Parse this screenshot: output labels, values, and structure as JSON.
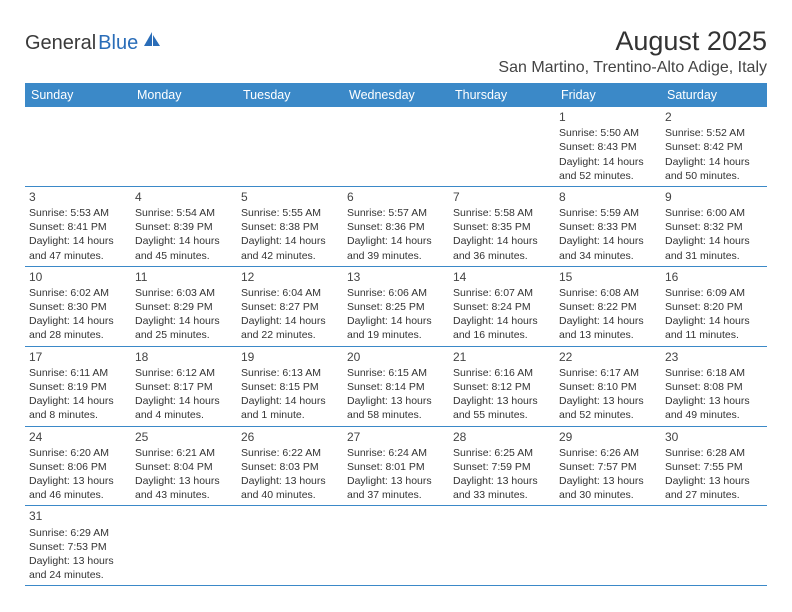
{
  "logo": {
    "part1": "General",
    "part2": "Blue"
  },
  "title": "August 2025",
  "location": "San Martino, Trentino-Alto Adige, Italy",
  "colors": {
    "header_bg": "#3b89c8",
    "header_text": "#ffffff",
    "border": "#3b89c8",
    "logo_blue": "#2a6db8",
    "text": "#333333"
  },
  "day_headers": [
    "Sunday",
    "Monday",
    "Tuesday",
    "Wednesday",
    "Thursday",
    "Friday",
    "Saturday"
  ],
  "weeks": [
    [
      null,
      null,
      null,
      null,
      null,
      {
        "n": "1",
        "sunrise": "Sunrise: 5:50 AM",
        "sunset": "Sunset: 8:43 PM",
        "daylight1": "Daylight: 14 hours",
        "daylight2": "and 52 minutes."
      },
      {
        "n": "2",
        "sunrise": "Sunrise: 5:52 AM",
        "sunset": "Sunset: 8:42 PM",
        "daylight1": "Daylight: 14 hours",
        "daylight2": "and 50 minutes."
      }
    ],
    [
      {
        "n": "3",
        "sunrise": "Sunrise: 5:53 AM",
        "sunset": "Sunset: 8:41 PM",
        "daylight1": "Daylight: 14 hours",
        "daylight2": "and 47 minutes."
      },
      {
        "n": "4",
        "sunrise": "Sunrise: 5:54 AM",
        "sunset": "Sunset: 8:39 PM",
        "daylight1": "Daylight: 14 hours",
        "daylight2": "and 45 minutes."
      },
      {
        "n": "5",
        "sunrise": "Sunrise: 5:55 AM",
        "sunset": "Sunset: 8:38 PM",
        "daylight1": "Daylight: 14 hours",
        "daylight2": "and 42 minutes."
      },
      {
        "n": "6",
        "sunrise": "Sunrise: 5:57 AM",
        "sunset": "Sunset: 8:36 PM",
        "daylight1": "Daylight: 14 hours",
        "daylight2": "and 39 minutes."
      },
      {
        "n": "7",
        "sunrise": "Sunrise: 5:58 AM",
        "sunset": "Sunset: 8:35 PM",
        "daylight1": "Daylight: 14 hours",
        "daylight2": "and 36 minutes."
      },
      {
        "n": "8",
        "sunrise": "Sunrise: 5:59 AM",
        "sunset": "Sunset: 8:33 PM",
        "daylight1": "Daylight: 14 hours",
        "daylight2": "and 34 minutes."
      },
      {
        "n": "9",
        "sunrise": "Sunrise: 6:00 AM",
        "sunset": "Sunset: 8:32 PM",
        "daylight1": "Daylight: 14 hours",
        "daylight2": "and 31 minutes."
      }
    ],
    [
      {
        "n": "10",
        "sunrise": "Sunrise: 6:02 AM",
        "sunset": "Sunset: 8:30 PM",
        "daylight1": "Daylight: 14 hours",
        "daylight2": "and 28 minutes."
      },
      {
        "n": "11",
        "sunrise": "Sunrise: 6:03 AM",
        "sunset": "Sunset: 8:29 PM",
        "daylight1": "Daylight: 14 hours",
        "daylight2": "and 25 minutes."
      },
      {
        "n": "12",
        "sunrise": "Sunrise: 6:04 AM",
        "sunset": "Sunset: 8:27 PM",
        "daylight1": "Daylight: 14 hours",
        "daylight2": "and 22 minutes."
      },
      {
        "n": "13",
        "sunrise": "Sunrise: 6:06 AM",
        "sunset": "Sunset: 8:25 PM",
        "daylight1": "Daylight: 14 hours",
        "daylight2": "and 19 minutes."
      },
      {
        "n": "14",
        "sunrise": "Sunrise: 6:07 AM",
        "sunset": "Sunset: 8:24 PM",
        "daylight1": "Daylight: 14 hours",
        "daylight2": "and 16 minutes."
      },
      {
        "n": "15",
        "sunrise": "Sunrise: 6:08 AM",
        "sunset": "Sunset: 8:22 PM",
        "daylight1": "Daylight: 14 hours",
        "daylight2": "and 13 minutes."
      },
      {
        "n": "16",
        "sunrise": "Sunrise: 6:09 AM",
        "sunset": "Sunset: 8:20 PM",
        "daylight1": "Daylight: 14 hours",
        "daylight2": "and 11 minutes."
      }
    ],
    [
      {
        "n": "17",
        "sunrise": "Sunrise: 6:11 AM",
        "sunset": "Sunset: 8:19 PM",
        "daylight1": "Daylight: 14 hours",
        "daylight2": "and 8 minutes."
      },
      {
        "n": "18",
        "sunrise": "Sunrise: 6:12 AM",
        "sunset": "Sunset: 8:17 PM",
        "daylight1": "Daylight: 14 hours",
        "daylight2": "and 4 minutes."
      },
      {
        "n": "19",
        "sunrise": "Sunrise: 6:13 AM",
        "sunset": "Sunset: 8:15 PM",
        "daylight1": "Daylight: 14 hours",
        "daylight2": "and 1 minute."
      },
      {
        "n": "20",
        "sunrise": "Sunrise: 6:15 AM",
        "sunset": "Sunset: 8:14 PM",
        "daylight1": "Daylight: 13 hours",
        "daylight2": "and 58 minutes."
      },
      {
        "n": "21",
        "sunrise": "Sunrise: 6:16 AM",
        "sunset": "Sunset: 8:12 PM",
        "daylight1": "Daylight: 13 hours",
        "daylight2": "and 55 minutes."
      },
      {
        "n": "22",
        "sunrise": "Sunrise: 6:17 AM",
        "sunset": "Sunset: 8:10 PM",
        "daylight1": "Daylight: 13 hours",
        "daylight2": "and 52 minutes."
      },
      {
        "n": "23",
        "sunrise": "Sunrise: 6:18 AM",
        "sunset": "Sunset: 8:08 PM",
        "daylight1": "Daylight: 13 hours",
        "daylight2": "and 49 minutes."
      }
    ],
    [
      {
        "n": "24",
        "sunrise": "Sunrise: 6:20 AM",
        "sunset": "Sunset: 8:06 PM",
        "daylight1": "Daylight: 13 hours",
        "daylight2": "and 46 minutes."
      },
      {
        "n": "25",
        "sunrise": "Sunrise: 6:21 AM",
        "sunset": "Sunset: 8:04 PM",
        "daylight1": "Daylight: 13 hours",
        "daylight2": "and 43 minutes."
      },
      {
        "n": "26",
        "sunrise": "Sunrise: 6:22 AM",
        "sunset": "Sunset: 8:03 PM",
        "daylight1": "Daylight: 13 hours",
        "daylight2": "and 40 minutes."
      },
      {
        "n": "27",
        "sunrise": "Sunrise: 6:24 AM",
        "sunset": "Sunset: 8:01 PM",
        "daylight1": "Daylight: 13 hours",
        "daylight2": "and 37 minutes."
      },
      {
        "n": "28",
        "sunrise": "Sunrise: 6:25 AM",
        "sunset": "Sunset: 7:59 PM",
        "daylight1": "Daylight: 13 hours",
        "daylight2": "and 33 minutes."
      },
      {
        "n": "29",
        "sunrise": "Sunrise: 6:26 AM",
        "sunset": "Sunset: 7:57 PM",
        "daylight1": "Daylight: 13 hours",
        "daylight2": "and 30 minutes."
      },
      {
        "n": "30",
        "sunrise": "Sunrise: 6:28 AM",
        "sunset": "Sunset: 7:55 PM",
        "daylight1": "Daylight: 13 hours",
        "daylight2": "and 27 minutes."
      }
    ],
    [
      {
        "n": "31",
        "sunrise": "Sunrise: 6:29 AM",
        "sunset": "Sunset: 7:53 PM",
        "daylight1": "Daylight: 13 hours",
        "daylight2": "and 24 minutes."
      },
      null,
      null,
      null,
      null,
      null,
      null
    ]
  ]
}
